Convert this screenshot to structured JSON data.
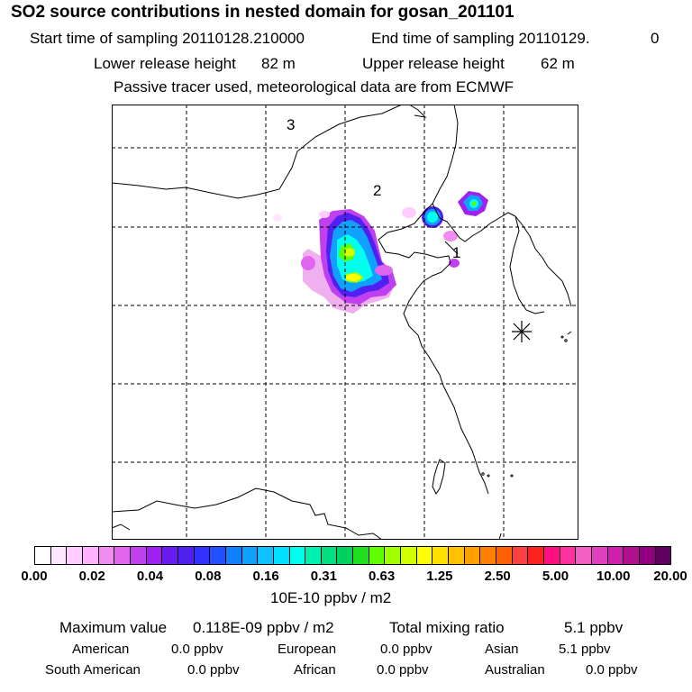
{
  "header": {
    "title": "SO2 source contributions in nested domain for gosan_201101",
    "start_label": "Start time of sampling 20110128.210000",
    "end_label": "End time of sampling 20110129.",
    "end_suffix": "0",
    "lower_label": "Lower release height",
    "lower_value": "82 m",
    "upper_label": "Upper release height",
    "upper_value": "62 m",
    "note": "Passive tracer used, meteorological data are from ECMWF"
  },
  "map": {
    "markers": [
      {
        "label": "1"
      },
      {
        "label": "2"
      },
      {
        "label": "3"
      }
    ],
    "receptor": "receptor-star-icon"
  },
  "colorbar": {
    "ticks": [
      "0.00",
      "0.02",
      "0.04",
      "0.08",
      "0.16",
      "0.31",
      "0.63",
      "1.25",
      "2.50",
      "5.00",
      "10.00",
      "20.00"
    ],
    "units": "10E-10 ppbv / m2",
    "colors": [
      "#ffffff",
      "#ffe6ff",
      "#ffccff",
      "#ffb3ff",
      "#f08cf0",
      "#e066f0",
      "#c040f0",
      "#a020f0",
      "#6a1cf0",
      "#5020f0",
      "#3030ff",
      "#2050ff",
      "#1080ff",
      "#10a0ff",
      "#10c0ff",
      "#00e0ff",
      "#00ffee",
      "#00f0b0",
      "#00e080",
      "#00d060",
      "#20e020",
      "#60ff00",
      "#a0ff00",
      "#d0ff00",
      "#ffff00",
      "#ffe000",
      "#ffc000",
      "#ffa000",
      "#ff8000",
      "#ff6000",
      "#ff4040",
      "#ff2020",
      "#ff1080",
      "#ff30a0",
      "#f060c0",
      "#e040c0",
      "#d020b0",
      "#b01090",
      "#900080",
      "#600060"
    ]
  },
  "stats": {
    "max_label": "Maximum value",
    "max_value": "0.118E-09 ppbv / m2",
    "total_label": "Total mixing ratio",
    "total_value": "5.1 ppbv",
    "regions": [
      {
        "name": "American",
        "value": "0.0 ppbv"
      },
      {
        "name": "European",
        "value": "0.0 ppbv"
      },
      {
        "name": "Asian",
        "value": "5.1 ppbv"
      },
      {
        "name": "South American",
        "value": "0.0 ppbv"
      },
      {
        "name": "African",
        "value": "0.0 ppbv"
      },
      {
        "name": "Australian",
        "value": "0.0 ppbv"
      }
    ]
  }
}
